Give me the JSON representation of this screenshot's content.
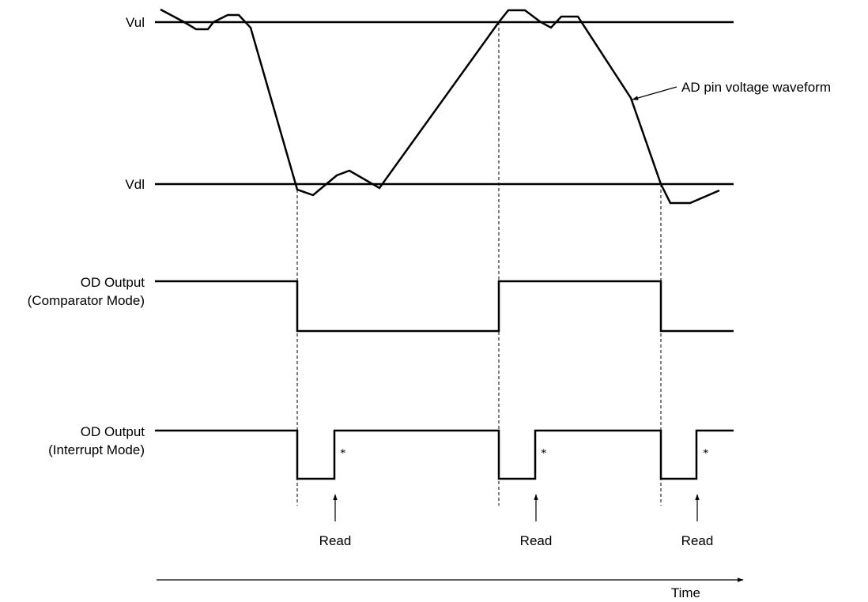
{
  "labels": {
    "vul": "Vul",
    "vdl": "Vdl",
    "comparator_line1": "OD Output",
    "comparator_line2": "(Comparator Mode)",
    "interrupt_line1": "OD Output",
    "interrupt_line2": "(Interrupt Mode)",
    "waveform_callout": "AD pin voltage waveform",
    "read_1": "Read",
    "read_2": "Read",
    "read_3": "Read",
    "star_1": "*",
    "star_2": "*",
    "star_3": "*",
    "time_axis": "Time"
  }
}
